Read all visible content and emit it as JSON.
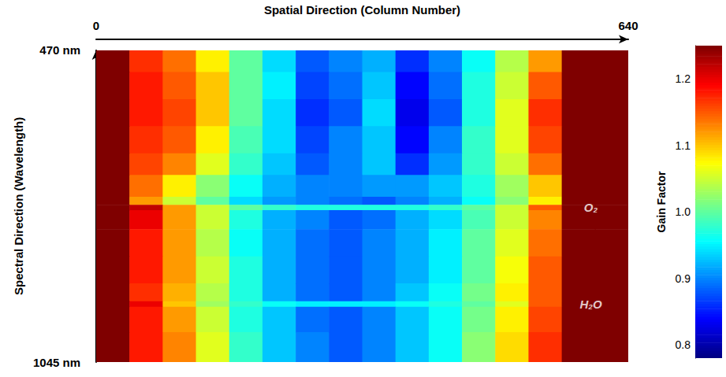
{
  "chart_data": {
    "type": "heatmap",
    "x_label": "Spatial Direction (Column Number)",
    "y_label": "Spectral Direction (Wavelength)",
    "xlim": [
      0,
      640
    ],
    "xticks": [
      0,
      640
    ],
    "ylim": [
      470,
      1045
    ],
    "yticks": [
      {
        "value": 470,
        "label": "470 nm"
      },
      {
        "value": 1045,
        "label": "1045 nm"
      }
    ],
    "x_bins": [
      0,
      40,
      80,
      120,
      160,
      200,
      240,
      280,
      320,
      360,
      400,
      440,
      480,
      520,
      560,
      600,
      640
    ],
    "y_bins": [
      470,
      510,
      560,
      610,
      660,
      700,
      740,
      755,
      765,
      800,
      850,
      900,
      933,
      943,
      990,
      1045
    ],
    "cells": [
      [
        1.25,
        1.17,
        1.14,
        1.08,
        1.0,
        0.94,
        0.88,
        0.9,
        0.92,
        0.86,
        0.9,
        0.96,
        1.04,
        1.12,
        1.25,
        1.25
      ],
      [
        1.25,
        1.18,
        1.15,
        1.1,
        1.0,
        0.95,
        0.87,
        0.89,
        0.93,
        0.84,
        0.89,
        0.97,
        1.05,
        1.15,
        1.25,
        1.25
      ],
      [
        1.25,
        1.18,
        1.16,
        1.1,
        1.0,
        0.94,
        0.86,
        0.88,
        0.94,
        0.83,
        0.88,
        0.97,
        1.06,
        1.17,
        1.25,
        1.25
      ],
      [
        1.25,
        1.17,
        1.15,
        1.08,
        0.99,
        0.94,
        0.87,
        0.9,
        0.93,
        0.84,
        0.9,
        0.98,
        1.06,
        1.16,
        1.25,
        1.25
      ],
      [
        1.25,
        1.16,
        1.13,
        1.06,
        0.98,
        0.93,
        0.88,
        0.9,
        0.93,
        0.86,
        0.91,
        0.98,
        1.05,
        1.14,
        1.25,
        1.25
      ],
      [
        1.25,
        1.14,
        1.08,
        1.02,
        0.96,
        0.92,
        0.9,
        0.9,
        0.91,
        0.91,
        0.93,
        0.97,
        1.03,
        1.1,
        1.25,
        1.25
      ],
      [
        1.25,
        1.12,
        1.05,
        1.0,
        0.94,
        0.91,
        0.9,
        0.89,
        0.88,
        0.9,
        0.92,
        0.96,
        1.02,
        1.08,
        1.25,
        1.25
      ],
      [
        1.25,
        1.22,
        1.12,
        1.05,
        1.0,
        0.98,
        0.97,
        0.97,
        0.97,
        0.97,
        0.98,
        1.0,
        1.05,
        1.15,
        1.25,
        1.25
      ],
      [
        1.25,
        1.2,
        1.12,
        1.05,
        0.97,
        0.92,
        0.9,
        0.88,
        0.89,
        0.92,
        0.94,
        0.99,
        1.05,
        1.13,
        1.25,
        1.25
      ],
      [
        1.25,
        1.18,
        1.12,
        1.04,
        0.96,
        0.92,
        0.89,
        0.88,
        0.9,
        0.92,
        0.95,
        1.0,
        1.06,
        1.14,
        1.25,
        1.25
      ],
      [
        1.25,
        1.18,
        1.12,
        1.05,
        0.97,
        0.92,
        0.89,
        0.88,
        0.9,
        0.92,
        0.95,
        1.0,
        1.07,
        1.15,
        1.25,
        1.25
      ],
      [
        1.25,
        1.17,
        1.11,
        1.04,
        0.97,
        0.92,
        0.89,
        0.88,
        0.9,
        0.93,
        0.96,
        1.01,
        1.08,
        1.15,
        1.25,
        1.25
      ],
      [
        1.25,
        1.2,
        1.1,
        1.03,
        0.98,
        0.96,
        0.95,
        0.95,
        0.95,
        0.96,
        0.97,
        1.0,
        1.06,
        1.15,
        1.25,
        1.25
      ],
      [
        1.25,
        1.18,
        1.12,
        1.05,
        0.97,
        0.93,
        0.89,
        0.88,
        0.9,
        0.93,
        0.96,
        1.01,
        1.08,
        1.16,
        1.25,
        1.25
      ],
      [
        1.25,
        1.18,
        1.13,
        1.06,
        0.98,
        0.93,
        0.9,
        0.88,
        0.9,
        0.93,
        0.96,
        1.02,
        1.09,
        1.17,
        1.25,
        1.25
      ]
    ],
    "colorbar": {
      "label": "Gain Factor",
      "range": [
        0.78,
        1.25
      ],
      "ticks": [
        0.8,
        0.9,
        {
          "value": 1,
          "label": "1.0"
        },
        1.1,
        1.2
      ]
    },
    "annotations": [
      {
        "text": "O₂",
        "x": 595,
        "y": 760
      },
      {
        "text": "H₂O",
        "x": 595,
        "y": 938
      }
    ]
  }
}
